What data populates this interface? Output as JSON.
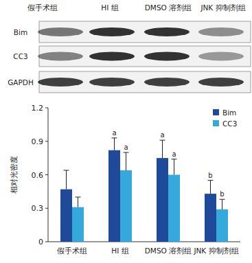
{
  "blot": {
    "lanes": [
      "假手术组",
      "HI 组",
      "DMSO 溶剂组",
      "JNK 抑制剂组"
    ],
    "rows": [
      "Bim",
      "CC3",
      "GAPDH"
    ]
  },
  "chart_data": {
    "type": "bar",
    "categories": [
      "假手术组",
      "HI 组",
      "DMSO 溶剂组",
      "JNK 抑制剂组"
    ],
    "y_label": "相对光密度",
    "ylim": [
      0,
      1.2
    ],
    "yticks": [
      0,
      0.3,
      0.6,
      0.9,
      1.2
    ],
    "legend": "upper right",
    "series": [
      {
        "name": "Bim",
        "color": "#1f4a9a",
        "values": [
          0.47,
          0.82,
          0.75,
          0.43
        ],
        "errors": [
          0.17,
          0.11,
          0.16,
          0.12
        ],
        "annotations": [
          null,
          "a",
          "a",
          "b"
        ]
      },
      {
        "name": "CC3",
        "color": "#35a9dc",
        "values": [
          0.31,
          0.64,
          0.6,
          0.29
        ],
        "errors": [
          0.09,
          0.16,
          0.14,
          0.09
        ],
        "annotations": [
          null,
          "a",
          "a",
          "b"
        ]
      }
    ]
  }
}
